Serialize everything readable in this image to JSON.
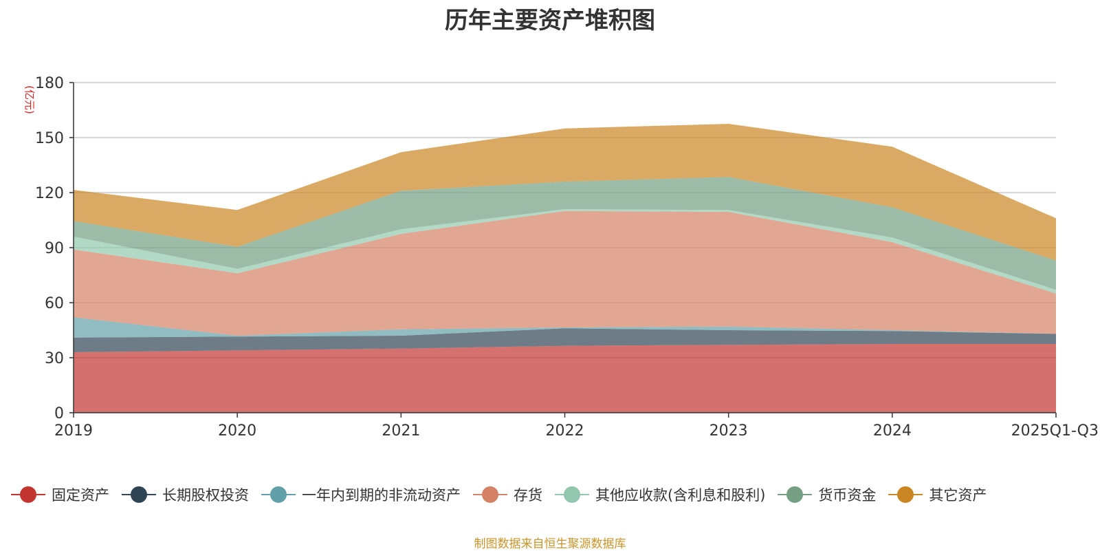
{
  "chart_data": {
    "type": "area",
    "stacked": true,
    "title": "历年主要资产堆积图",
    "unit_label": "(亿元)",
    "categories": [
      "2019",
      "2020",
      "2021",
      "2022",
      "2023",
      "2024",
      "2025Q1-Q3"
    ],
    "ylim": [
      0,
      180
    ],
    "yticks": [
      0,
      30,
      60,
      90,
      120,
      150,
      180
    ],
    "grid": true,
    "legend_position": "bottom",
    "series": [
      {
        "name": "固定资产",
        "color": "#c23531",
        "values": [
          33,
          34,
          35,
          36.5,
          37,
          37.5,
          37.5
        ]
      },
      {
        "name": "长期股权投资",
        "color": "#2f4554",
        "values": [
          8,
          7.5,
          7,
          9.5,
          8,
          7,
          5.5
        ]
      },
      {
        "name": "一年内到期的非流动资产",
        "color": "#61a0a8",
        "values": [
          11,
          0.5,
          3.5,
          0.5,
          2,
          0.5,
          0
        ]
      },
      {
        "name": "存货",
        "color": "#d48265",
        "values": [
          37,
          34,
          52,
          63.5,
          62.5,
          48,
          22
        ]
      },
      {
        "name": "其他应收款(含利息和股利)",
        "color": "#91c7ae",
        "values": [
          7,
          2.5,
          2.5,
          1,
          1,
          2.5,
          2
        ]
      },
      {
        "name": "货币资金",
        "color": "#749f83",
        "values": [
          8.5,
          12,
          21,
          15,
          18,
          16.5,
          16
        ]
      },
      {
        "name": "其它资产",
        "color": "#ca8622",
        "values": [
          17,
          20,
          21,
          29,
          29,
          33,
          23
        ]
      }
    ]
  },
  "source_note": "制图数据来自恒生聚源数据库"
}
